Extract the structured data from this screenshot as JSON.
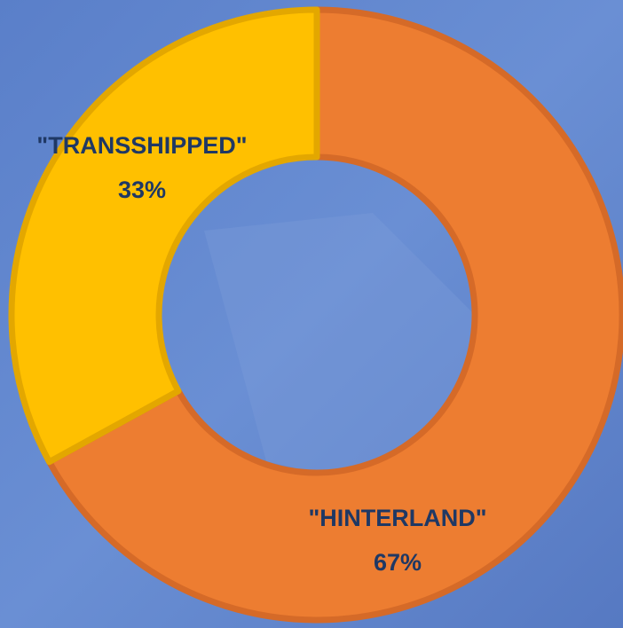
{
  "chart_data": {
    "type": "donut",
    "categories": [
      "\"HINTERLAND\"",
      "\"TRANSSHIPPED\""
    ],
    "values": [
      67,
      33
    ],
    "value_labels": [
      "67%",
      "33%"
    ],
    "colors": [
      "#ed7d31",
      "#ffc000"
    ]
  }
}
